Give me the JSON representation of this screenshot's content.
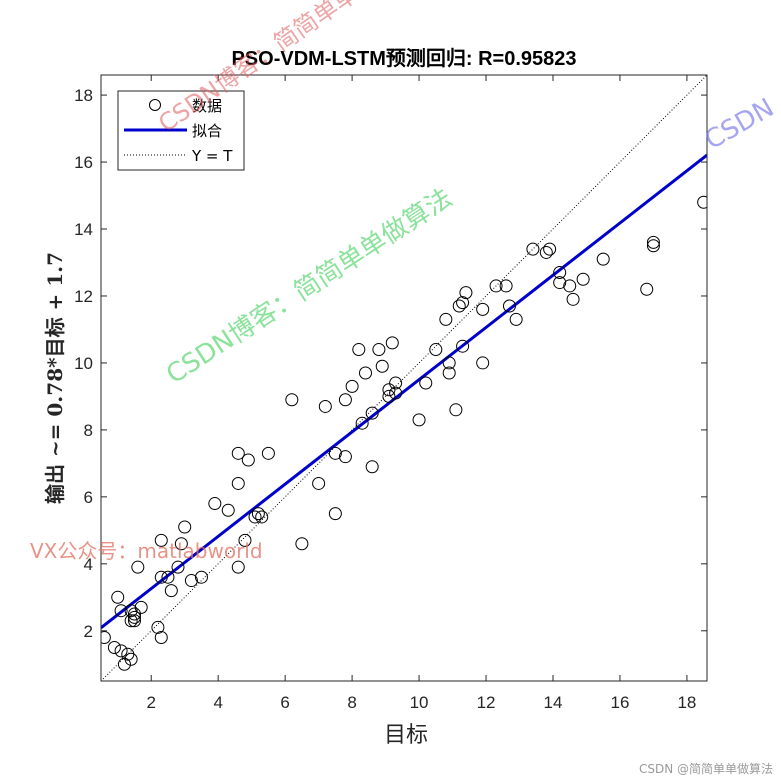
{
  "chart_data": {
    "type": "scatter",
    "title": "PSO-VDM-LSTM预测回归: R=0.95823",
    "xlabel": "目标",
    "ylabel": "输出 ~= 0.78*目标 + 1.7",
    "xlim": [
      0.5,
      18.6
    ],
    "ylim": [
      0.5,
      18.6
    ],
    "xticks": [
      2,
      4,
      6,
      8,
      10,
      12,
      14,
      16,
      18
    ],
    "yticks": [
      2,
      4,
      6,
      8,
      10,
      12,
      14,
      16,
      18
    ],
    "grid": false,
    "legend_position": "top-left",
    "fit": {
      "slope": 0.78,
      "intercept": 1.7,
      "color": "#0000cc"
    },
    "identity_line": true,
    "legend": [
      "数据",
      "拟合",
      "Y = T"
    ],
    "series": [
      {
        "name": "数据",
        "x": [
          0.6,
          0.9,
          1.0,
          1.1,
          1.1,
          1.2,
          1.3,
          1.4,
          1.4,
          1.4,
          1.5,
          1.5,
          1.5,
          1.6,
          1.7,
          2.2,
          2.3,
          2.3,
          2.3,
          2.5,
          2.6,
          2.8,
          2.9,
          3.0,
          3.2,
          3.5,
          3.9,
          4.3,
          4.6,
          4.6,
          4.6,
          4.8,
          4.9,
          5.1,
          5.2,
          5.3,
          5.5,
          6.2,
          6.5,
          7.0,
          7.2,
          7.5,
          7.5,
          7.8,
          7.8,
          8.0,
          8.2,
          8.3,
          8.4,
          8.6,
          8.6,
          8.8,
          8.9,
          9.1,
          9.1,
          9.2,
          9.3,
          9.3,
          10.0,
          10.2,
          10.5,
          10.8,
          10.9,
          10.9,
          11.1,
          11.2,
          11.3,
          11.3,
          11.4,
          11.9,
          11.9,
          12.3,
          12.6,
          12.7,
          12.9,
          13.4,
          13.8,
          13.9,
          14.2,
          14.2,
          14.5,
          14.6,
          14.9,
          15.5,
          16.8,
          17.0,
          17.0,
          18.5
        ],
        "y": [
          1.8,
          1.5,
          3.0,
          2.6,
          1.4,
          1.0,
          1.3,
          2.6,
          2.3,
          1.15,
          2.4,
          2.3,
          2.5,
          3.9,
          2.7,
          2.1,
          1.8,
          3.6,
          4.7,
          3.6,
          3.2,
          3.9,
          4.6,
          5.1,
          3.5,
          3.6,
          5.8,
          5.6,
          3.9,
          6.4,
          7.3,
          4.7,
          7.1,
          5.4,
          5.5,
          5.4,
          7.3,
          8.9,
          4.6,
          6.4,
          8.7,
          5.5,
          7.3,
          8.9,
          7.2,
          9.3,
          10.4,
          8.2,
          9.7,
          6.9,
          8.5,
          10.4,
          9.9,
          9.0,
          9.2,
          10.6,
          9.1,
          9.4,
          8.3,
          9.4,
          10.4,
          11.3,
          10.0,
          9.7,
          8.6,
          11.7,
          10.5,
          11.8,
          12.1,
          10.0,
          11.6,
          12.3,
          12.3,
          11.7,
          11.3,
          13.4,
          13.3,
          13.4,
          12.7,
          12.4,
          12.3,
          11.9,
          12.5,
          13.1,
          12.2,
          13.6,
          13.5,
          14.8
        ]
      }
    ]
  },
  "watermarks": {
    "red": "CSDN博客：简简单单做算法",
    "green": "CSDN博客：简简单单做算法",
    "blue": "CSDN",
    "vx": "VX公众号：matlabworld"
  },
  "footer": "CSDN @简简单单做算法"
}
